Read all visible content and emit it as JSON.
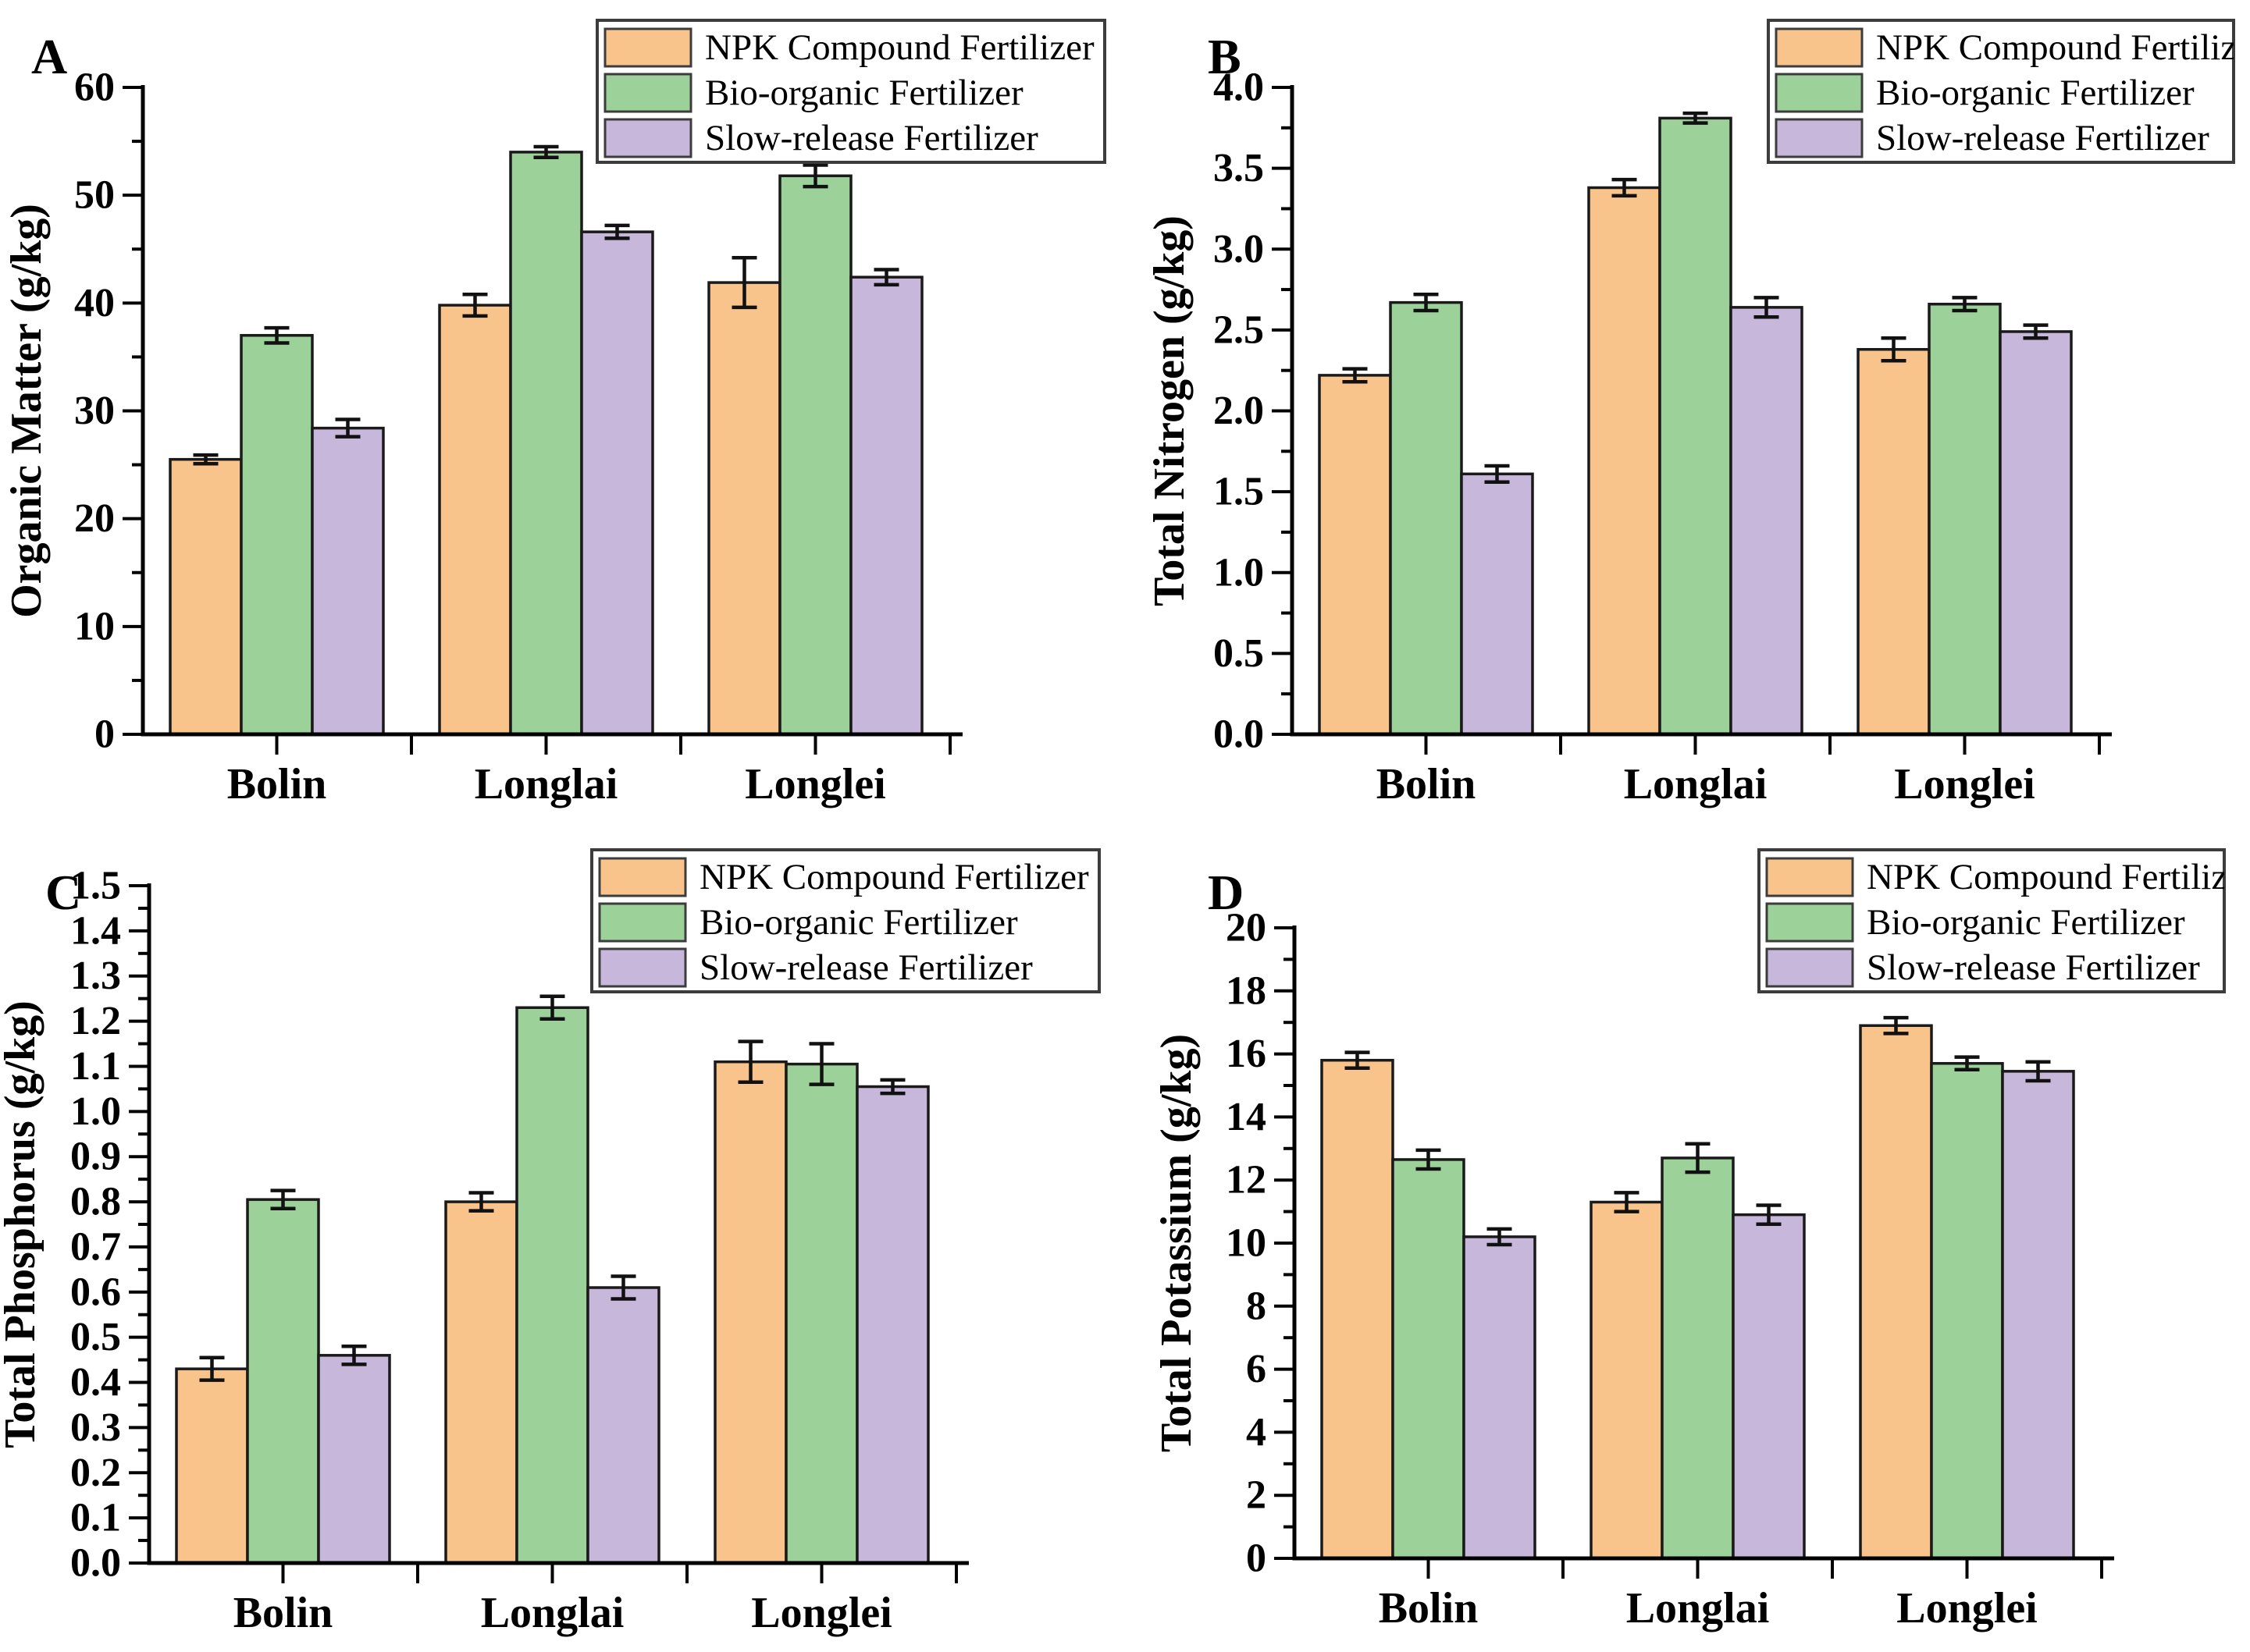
{
  "figure": {
    "description": "Four-panel bar chart of soil nutrient indicators under three fertilizer treatments at three sites",
    "sites": [
      "Bolin",
      "Longlai",
      "Longlei"
    ],
    "treatments": [
      "NPK Compound Fertilizer",
      "Bio-organic Fertilizer",
      "Slow-release Fertilizer"
    ],
    "colors": {
      "npk": "#F9C48C",
      "bio": "#9CD29A",
      "slow": "#C7B7DB",
      "bar_edge": "#1a1a1a",
      "axis": "#000000",
      "error_bar": "#111111",
      "legend_border": "#3c3c3c",
      "background": "#ffffff"
    }
  },
  "chart_data": [
    {
      "type": "bar",
      "panel_label": "A",
      "ylabel": "Organic Matter (g/kg)",
      "xlabel": "",
      "categories": [
        "Bolin",
        "Longlai",
        "Longlei"
      ],
      "series": [
        {
          "name": "NPK Compound Fertilizer",
          "color_key": "npk",
          "values": [
            25.5,
            39.8,
            41.9
          ],
          "errors": [
            0.4,
            1.0,
            2.3
          ]
        },
        {
          "name": "Bio-organic Fertilizer",
          "color_key": "bio",
          "values": [
            37.0,
            54.0,
            51.8
          ],
          "errors": [
            0.7,
            0.5,
            1.0
          ]
        },
        {
          "name": "Slow-release Fertilizer",
          "color_key": "slow",
          "values": [
            28.4,
            46.6,
            42.4
          ],
          "errors": [
            0.8,
            0.6,
            0.7
          ]
        }
      ],
      "ylim": [
        0,
        60
      ],
      "ytick_major": 10,
      "ytick_minor": 5,
      "ytick_decimals": 0,
      "grid": false,
      "legend_position": "top-right"
    },
    {
      "type": "bar",
      "panel_label": "B",
      "ylabel": "Total Nitrogen (g/kg)",
      "xlabel": "",
      "categories": [
        "Bolin",
        "Longlai",
        "Longlei"
      ],
      "series": [
        {
          "name": "NPK Compound Fertilizer",
          "color_key": "npk",
          "values": [
            2.22,
            3.38,
            2.38
          ],
          "errors": [
            0.04,
            0.05,
            0.07
          ]
        },
        {
          "name": "Bio-organic Fertilizer",
          "color_key": "bio",
          "values": [
            2.67,
            3.81,
            2.66
          ],
          "errors": [
            0.05,
            0.03,
            0.04
          ]
        },
        {
          "name": "Slow-release Fertilizer",
          "color_key": "slow",
          "values": [
            1.61,
            2.64,
            2.49
          ],
          "errors": [
            0.05,
            0.06,
            0.04
          ]
        }
      ],
      "ylim": [
        0,
        4.0
      ],
      "ytick_major": 0.5,
      "ytick_minor": 0.25,
      "ytick_decimals": 1,
      "grid": false,
      "legend_position": "top-right"
    },
    {
      "type": "bar",
      "panel_label": "C",
      "ylabel": "Total Phosphorus (g/kg)",
      "xlabel": "",
      "categories": [
        "Bolin",
        "Longlai",
        "Longlei"
      ],
      "series": [
        {
          "name": "NPK Compound Fertilizer",
          "color_key": "npk",
          "values": [
            0.43,
            0.8,
            1.11
          ],
          "errors": [
            0.025,
            0.02,
            0.045
          ]
        },
        {
          "name": "Bio-organic Fertilizer",
          "color_key": "bio",
          "values": [
            0.805,
            1.23,
            1.105
          ],
          "errors": [
            0.02,
            0.025,
            0.045
          ]
        },
        {
          "name": "Slow-release Fertilizer",
          "color_key": "slow",
          "values": [
            0.46,
            0.61,
            1.055
          ],
          "errors": [
            0.02,
            0.025,
            0.015
          ]
        }
      ],
      "ylim": [
        0,
        1.5
      ],
      "ytick_major": 0.1,
      "ytick_minor": 0.05,
      "ytick_decimals": 1,
      "grid": false,
      "legend_position": "top-right"
    },
    {
      "type": "bar",
      "panel_label": "D",
      "ylabel": "Total Potassium (g/kg)",
      "xlabel": "",
      "categories": [
        "Bolin",
        "Longlai",
        "Longlei"
      ],
      "series": [
        {
          "name": "NPK Compound Fertilizer",
          "color_key": "npk",
          "values": [
            15.8,
            11.3,
            16.9
          ],
          "errors": [
            0.25,
            0.3,
            0.25
          ]
        },
        {
          "name": "Bio-organic Fertilizer",
          "color_key": "bio",
          "values": [
            12.65,
            12.7,
            15.7
          ],
          "errors": [
            0.3,
            0.45,
            0.2
          ]
        },
        {
          "name": "Slow-release Fertilizer",
          "color_key": "slow",
          "values": [
            10.2,
            10.9,
            15.45
          ],
          "errors": [
            0.25,
            0.3,
            0.3
          ]
        }
      ],
      "ylim": [
        0,
        20
      ],
      "ytick_major": 2,
      "ytick_minor": 1,
      "ytick_decimals": 0,
      "grid": false,
      "legend_position": "top-right"
    }
  ]
}
